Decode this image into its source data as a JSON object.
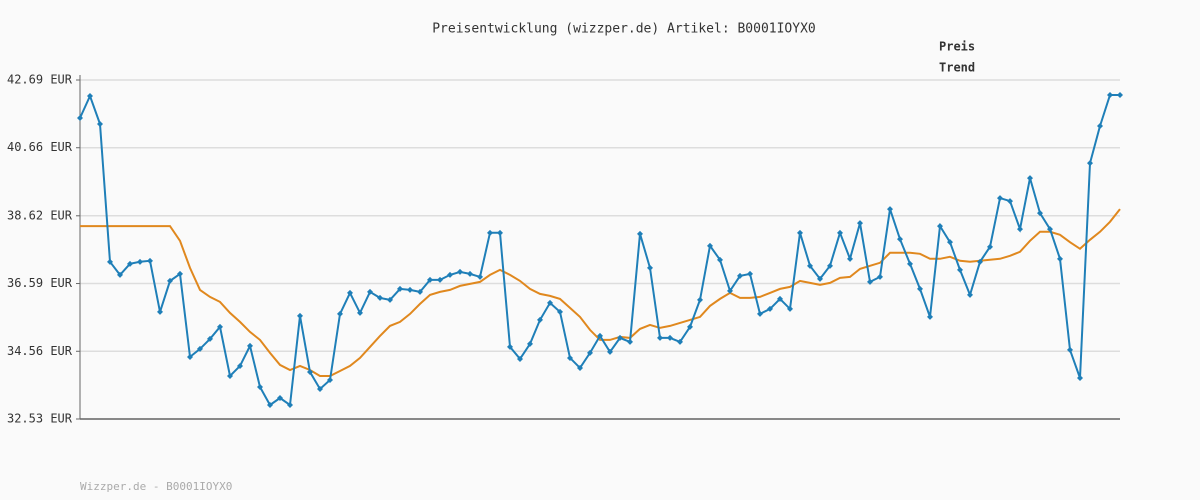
{
  "chart_data": {
    "type": "line",
    "title": "Preisentwicklung (wizzper.de) Artikel: B0001IOYX0",
    "footer": "Wizzper.de - B0001IOYX0",
    "categories": [
      null,
      null,
      null,
      null,
      null,
      null,
      null,
      null,
      null,
      null,
      null,
      null,
      null,
      null,
      null,
      null,
      null,
      null,
      null,
      null,
      null,
      null,
      null,
      null,
      null,
      null,
      null,
      null,
      null,
      null,
      null,
      null,
      null,
      null,
      null,
      null,
      null,
      null,
      null,
      null,
      null,
      null,
      null,
      null,
      null,
      null,
      null,
      null,
      null,
      null,
      null,
      null,
      null,
      null,
      null,
      null,
      null,
      null,
      null,
      null,
      null,
      null,
      null,
      null,
      null,
      null,
      null,
      null,
      null,
      null,
      null,
      null,
      null,
      null,
      null,
      null,
      null,
      null,
      null,
      null,
      null,
      null,
      null,
      null,
      null,
      null,
      null,
      null,
      null,
      null,
      null,
      null,
      null,
      null,
      null,
      null,
      null,
      null,
      null,
      null,
      null,
      null,
      null,
      null,
      null
    ],
    "series": [
      {
        "name": "Preis",
        "color": "#1f7fb8",
        "markers": true,
        "values": [
          41.55,
          42.21,
          41.37,
          37.24,
          36.85,
          37.18,
          37.24,
          37.27,
          35.74,
          36.67,
          36.88,
          34.39,
          34.63,
          34.93,
          35.29,
          33.82,
          34.12,
          34.72,
          33.49,
          32.95,
          33.16,
          32.95,
          35.62,
          33.94,
          33.43,
          33.7,
          35.68,
          36.31,
          35.71,
          36.34,
          36.16,
          36.1,
          36.43,
          36.4,
          36.34,
          36.7,
          36.7,
          36.85,
          36.94,
          36.88,
          36.79,
          38.11,
          38.11,
          34.69,
          34.33,
          34.78,
          35.5,
          36.01,
          35.74,
          34.36,
          34.06,
          34.51,
          35.02,
          34.54,
          34.96,
          34.84,
          38.08,
          37.06,
          34.96,
          34.96,
          34.84,
          35.29,
          36.1,
          37.72,
          37.3,
          36.37,
          36.82,
          36.88,
          35.68,
          35.83,
          36.13,
          35.83,
          38.11,
          37.12,
          36.73,
          37.12,
          38.11,
          37.33,
          38.4,
          36.64,
          36.79,
          38.82,
          37.92,
          37.18,
          36.43,
          35.59,
          38.31,
          37.83,
          37.0,
          36.25,
          37.24,
          37.69,
          39.15,
          39.06,
          38.22,
          39.75,
          38.7,
          38.22,
          37.33,
          34.6,
          33.76,
          40.2,
          41.31,
          42.24,
          42.24
        ]
      },
      {
        "name": "Trend",
        "color": "#e0881e",
        "markers": false,
        "values": [
          38.31,
          38.31,
          38.31,
          38.31,
          38.31,
          38.31,
          38.31,
          38.31,
          38.31,
          38.31,
          37.87,
          37.06,
          36.4,
          36.19,
          36.04,
          35.71,
          35.44,
          35.14,
          34.9,
          34.51,
          34.15,
          34.0,
          34.12,
          34.0,
          33.82,
          33.82,
          33.97,
          34.12,
          34.36,
          34.69,
          35.02,
          35.32,
          35.44,
          35.68,
          35.98,
          36.25,
          36.34,
          36.4,
          36.52,
          36.58,
          36.64,
          36.85,
          37.0,
          36.85,
          36.67,
          36.43,
          36.28,
          36.22,
          36.13,
          35.86,
          35.59,
          35.2,
          34.9,
          34.9,
          34.99,
          34.96,
          35.23,
          35.35,
          35.26,
          35.32,
          35.41,
          35.5,
          35.59,
          35.92,
          36.13,
          36.31,
          36.16,
          36.16,
          36.19,
          36.31,
          36.43,
          36.49,
          36.67,
          36.61,
          36.55,
          36.61,
          36.76,
          36.79,
          37.03,
          37.12,
          37.21,
          37.51,
          37.51,
          37.51,
          37.48,
          37.33,
          37.33,
          37.39,
          37.27,
          37.24,
          37.27,
          37.3,
          37.33,
          37.42,
          37.54,
          37.87,
          38.14,
          38.14,
          38.05,
          37.83,
          37.63,
          37.9,
          38.14,
          38.44,
          38.82
        ]
      }
    ],
    "ylim": [
      32.53,
      42.69
    ],
    "yticks": [
      {
        "value": 32.53,
        "label": "32.53 EUR"
      },
      {
        "value": 34.56,
        "label": "34.56 EUR"
      },
      {
        "value": 36.59,
        "label": "36.59 EUR"
      },
      {
        "value": 38.62,
        "label": "38.62 EUR"
      },
      {
        "value": 40.66,
        "label": "40.66 EUR"
      },
      {
        "value": 42.69,
        "label": "42.69 EUR"
      }
    ],
    "grid": true
  }
}
